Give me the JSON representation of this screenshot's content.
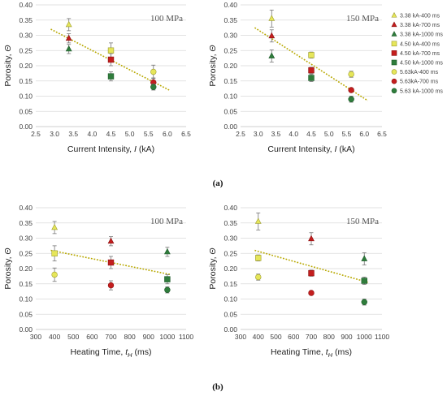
{
  "captions": [
    "(a)",
    "(b)"
  ],
  "legend": [
    {
      "label": "3.38 kA-400 ms",
      "marker": "triangle",
      "fill": "#e6e65a",
      "stroke": "#9c9c30"
    },
    {
      "label": "3.38 kA-700 ms",
      "marker": "triangle",
      "fill": "#c41e1e",
      "stroke": "#8a1010"
    },
    {
      "label": "3.38 kA-1000 ms",
      "marker": "triangle",
      "fill": "#2f7d3c",
      "stroke": "#1d5a28"
    },
    {
      "label": "4.50 kA-400 ms",
      "marker": "square",
      "fill": "#e6e65a",
      "stroke": "#9c9c30"
    },
    {
      "label": "4.50 kA-700 ms",
      "marker": "square",
      "fill": "#c41e1e",
      "stroke": "#8a1010"
    },
    {
      "label": "4.50 kA-1000 ms",
      "marker": "square",
      "fill": "#2f7d3c",
      "stroke": "#1d5a28"
    },
    {
      "label": "5.63kA-400 ms",
      "marker": "circle",
      "fill": "#e6e65a",
      "stroke": "#9c9c30"
    },
    {
      "label": "5.63kA-700 ms",
      "marker": "circle",
      "fill": "#c41e1e",
      "stroke": "#8a1010"
    },
    {
      "label": "5.63 kA-1000 ms",
      "marker": "circle",
      "fill": "#2f7d3c",
      "stroke": "#1d5a28"
    }
  ],
  "trendline_color": "#b8a800",
  "chart_data": [
    {
      "type": "scatter",
      "annotation": "100 MPa",
      "xlabel": "Current Intensity, I (kA)",
      "ylabel": "Porosity, Θ",
      "xlim": [
        2.5,
        6.5
      ],
      "xticks": [
        "2.5",
        "3.0",
        "3.5",
        "4.0",
        "4.5",
        "5.0",
        "5.5",
        "6.0",
        "6.5"
      ],
      "ylim": [
        0,
        0.4
      ],
      "yticks": [
        "0.00",
        "0.05",
        "0.10",
        "0.15",
        "0.20",
        "0.25",
        "0.30",
        "0.35",
        "0.40"
      ],
      "grid": true,
      "trendline": [
        [
          2.9,
          0.32
        ],
        [
          6.05,
          0.12
        ]
      ],
      "points": [
        {
          "s": 0,
          "x": 3.38,
          "y": 0.335,
          "err": 0.02
        },
        {
          "s": 1,
          "x": 3.38,
          "y": 0.29,
          "err": 0.015
        },
        {
          "s": 2,
          "x": 3.38,
          "y": 0.255,
          "err": 0.015
        },
        {
          "s": 3,
          "x": 4.5,
          "y": 0.25,
          "err": 0.025
        },
        {
          "s": 4,
          "x": 4.5,
          "y": 0.22,
          "err": 0.02
        },
        {
          "s": 5,
          "x": 4.5,
          "y": 0.165,
          "err": 0.015
        },
        {
          "s": 6,
          "x": 5.63,
          "y": 0.18,
          "err": 0.022
        },
        {
          "s": 7,
          "x": 5.63,
          "y": 0.145,
          "err": 0.015
        },
        {
          "s": 8,
          "x": 5.63,
          "y": 0.13,
          "err": 0.01
        }
      ]
    },
    {
      "type": "scatter",
      "annotation": "150 MPa",
      "xlabel": "Current Intensity, I (kA)",
      "ylabel": "Porosity, Θ",
      "xlim": [
        2.5,
        6.5
      ],
      "xticks": [
        "2.5",
        "3.0",
        "3.5",
        "4.0",
        "4.5",
        "5.0",
        "5.5",
        "6.0",
        "6.5"
      ],
      "ylim": [
        0,
        0.4
      ],
      "yticks": [
        "0.00",
        "0.05",
        "0.10",
        "0.15",
        "0.20",
        "0.25",
        "0.30",
        "0.35",
        "0.40"
      ],
      "grid": true,
      "trendline": [
        [
          2.9,
          0.325
        ],
        [
          6.1,
          0.085
        ]
      ],
      "points": [
        {
          "s": 0,
          "x": 3.38,
          "y": 0.355,
          "err": 0.028
        },
        {
          "s": 1,
          "x": 3.38,
          "y": 0.298,
          "err": 0.02
        },
        {
          "s": 2,
          "x": 3.38,
          "y": 0.232,
          "err": 0.02
        },
        {
          "s": 3,
          "x": 4.5,
          "y": 0.235,
          "err": 0.01
        },
        {
          "s": 4,
          "x": 4.5,
          "y": 0.185,
          "err": 0.01
        },
        {
          "s": 5,
          "x": 4.5,
          "y": 0.16,
          "err": 0.012
        },
        {
          "s": 6,
          "x": 5.63,
          "y": 0.172,
          "err": 0.01
        },
        {
          "s": 7,
          "x": 5.63,
          "y": 0.12,
          "err": 0.005
        },
        {
          "s": 8,
          "x": 5.63,
          "y": 0.09,
          "err": 0.01
        }
      ]
    },
    {
      "type": "scatter",
      "annotation": "100 MPa",
      "xlabel": "Heating Time, tH (ms)",
      "ylabel": "Porosity, Θ",
      "xlim": [
        300,
        1100
      ],
      "xticks": [
        "300",
        "400",
        "500",
        "600",
        "700",
        "800",
        "900",
        "1000",
        "1100"
      ],
      "ylim": [
        0,
        0.4
      ],
      "yticks": [
        "0.00",
        "0.05",
        "0.10",
        "0.15",
        "0.20",
        "0.25",
        "0.30",
        "0.35",
        "0.40"
      ],
      "grid": true,
      "trendline": [
        [
          380,
          0.26
        ],
        [
          1020,
          0.18
        ]
      ],
      "points": [
        {
          "s": 0,
          "x": 400,
          "y": 0.335,
          "err": 0.02
        },
        {
          "s": 3,
          "x": 400,
          "y": 0.25,
          "err": 0.025
        },
        {
          "s": 6,
          "x": 400,
          "y": 0.18,
          "err": 0.022
        },
        {
          "s": 1,
          "x": 700,
          "y": 0.29,
          "err": 0.015
        },
        {
          "s": 4,
          "x": 700,
          "y": 0.22,
          "err": 0.02
        },
        {
          "s": 7,
          "x": 700,
          "y": 0.145,
          "err": 0.015
        },
        {
          "s": 2,
          "x": 1000,
          "y": 0.255,
          "err": 0.015
        },
        {
          "s": 5,
          "x": 1000,
          "y": 0.165,
          "err": 0.015
        },
        {
          "s": 8,
          "x": 1000,
          "y": 0.13,
          "err": 0.01
        }
      ]
    },
    {
      "type": "scatter",
      "annotation": "150 MPa",
      "xlabel": "Heating Time, tH (ms)",
      "ylabel": "Porosity, Θ",
      "xlim": [
        300,
        1100
      ],
      "xticks": [
        "300",
        "400",
        "500",
        "600",
        "700",
        "800",
        "900",
        "1000",
        "1100"
      ],
      "ylim": [
        0,
        0.4
      ],
      "yticks": [
        "0.00",
        "0.05",
        "0.10",
        "0.15",
        "0.20",
        "0.25",
        "0.30",
        "0.35",
        "0.40"
      ],
      "grid": true,
      "trendline": [
        [
          380,
          0.26
        ],
        [
          1020,
          0.155
        ]
      ],
      "points": [
        {
          "s": 0,
          "x": 400,
          "y": 0.355,
          "err": 0.028
        },
        {
          "s": 3,
          "x": 400,
          "y": 0.235,
          "err": 0.01
        },
        {
          "s": 6,
          "x": 400,
          "y": 0.172,
          "err": 0.01
        },
        {
          "s": 1,
          "x": 700,
          "y": 0.298,
          "err": 0.02
        },
        {
          "s": 4,
          "x": 700,
          "y": 0.185,
          "err": 0.01
        },
        {
          "s": 7,
          "x": 700,
          "y": 0.12,
          "err": 0.005
        },
        {
          "s": 2,
          "x": 1000,
          "y": 0.232,
          "err": 0.02
        },
        {
          "s": 5,
          "x": 1000,
          "y": 0.16,
          "err": 0.012
        },
        {
          "s": 8,
          "x": 1000,
          "y": 0.09,
          "err": 0.01
        }
      ]
    }
  ]
}
